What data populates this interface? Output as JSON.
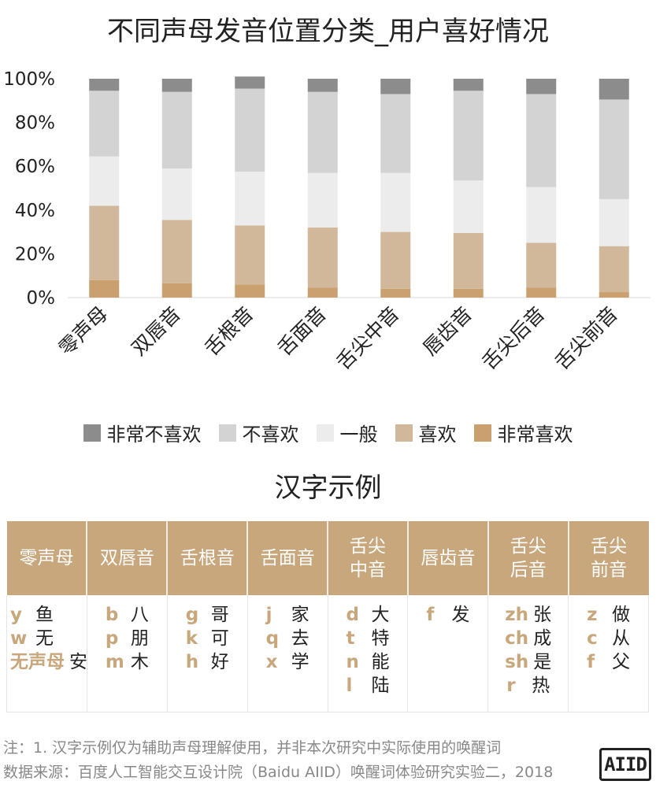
{
  "chart_data": {
    "type": "bar",
    "stacked": true,
    "title": "不同声母发音位置分类_用户喜好情况",
    "categories": [
      "零声母",
      "双唇音",
      "舌根音",
      "舌面音",
      "舌尖中音",
      "唇齿音",
      "舌尖后音",
      "舌尖前音"
    ],
    "yticks": [
      "0%",
      "20%",
      "40%",
      "60%",
      "80%",
      "100%"
    ],
    "ylim": [
      0,
      100
    ],
    "series": [
      {
        "name": "非常喜欢",
        "color": "#c9a06e",
        "values": [
          8,
          6.5,
          6,
          4.5,
          4,
          4,
          4.5,
          2.5
        ]
      },
      {
        "name": "喜欢",
        "color": "#d2b89b",
        "values": [
          34,
          29,
          27,
          27.5,
          26,
          25.5,
          20.5,
          21
        ]
      },
      {
        "name": "一般",
        "color": "#ececec",
        "values": [
          22.5,
          23.5,
          24.5,
          25,
          27,
          24,
          25.5,
          21.5
        ]
      },
      {
        "name": "不喜欢",
        "color": "#d3d3d3",
        "values": [
          30,
          35,
          38,
          37,
          36,
          41,
          42.5,
          45.5
        ]
      },
      {
        "name": "非常不喜欢",
        "color": "#8c8c8c",
        "values": [
          5.5,
          6,
          5.5,
          6,
          7,
          5.5,
          7,
          9.5
        ]
      }
    ],
    "legend_position": "bottom",
    "legend_order": [
      "非常不喜欢",
      "不喜欢",
      "一般",
      "喜欢",
      "非常喜欢"
    ]
  },
  "subtitle": "汉字示例",
  "table": {
    "headers": [
      "零声母",
      "双唇音",
      "舌根音",
      "舌面音",
      "舌尖\n中音",
      "唇齿音",
      "舌尖\n后音",
      "舌尖\n前音"
    ],
    "columns": [
      [
        {
          "l": "y",
          "c": "鱼"
        },
        {
          "l": "w",
          "c": "无"
        },
        {
          "l": "无声母",
          "c": "安"
        }
      ],
      [
        {
          "l": "b",
          "c": "八"
        },
        {
          "l": "p",
          "c": "朋"
        },
        {
          "l": "m",
          "c": "木"
        }
      ],
      [
        {
          "l": "g",
          "c": "哥"
        },
        {
          "l": "k",
          "c": "可"
        },
        {
          "l": "h",
          "c": "好"
        }
      ],
      [
        {
          "l": "j",
          "c": "家"
        },
        {
          "l": "q",
          "c": "去"
        },
        {
          "l": "x",
          "c": "学"
        }
      ],
      [
        {
          "l": "d",
          "c": "大"
        },
        {
          "l": "t",
          "c": "特"
        },
        {
          "l": "n",
          "c": "能"
        },
        {
          "l": "l",
          "c": "陆"
        }
      ],
      [
        {
          "l": "f",
          "c": "发"
        }
      ],
      [
        {
          "l": "zh",
          "c": "张"
        },
        {
          "l": "ch",
          "c": "成"
        },
        {
          "l": "sh",
          "c": "是"
        },
        {
          "l": "r",
          "c": "热"
        }
      ],
      [
        {
          "l": "z",
          "c": "做"
        },
        {
          "l": "c",
          "c": "从"
        },
        {
          "l": "f",
          "c": "父"
        }
      ]
    ]
  },
  "notes": {
    "note1": "注：1. 汉字示例仅为辅助声母理解使用，并非本次研究中实际使用的唤醒词",
    "source": "数据来源：百度人工智能交互设计院（Baidu AIID）唤醒词体验研究实验二，2018"
  },
  "logo_text": "AIID"
}
